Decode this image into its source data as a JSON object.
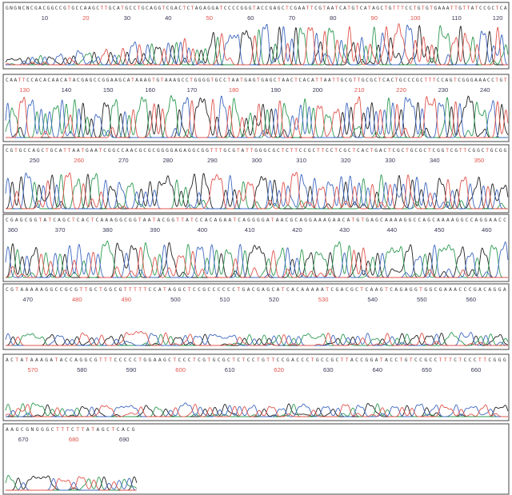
{
  "chart_data": {
    "type": "line",
    "title": "",
    "xlabel": "",
    "ylabel": "",
    "grid": false,
    "colors": {
      "A": "#2e9a52",
      "C": "#3f68c0",
      "G": "#222222",
      "T": "#e0544c",
      "frame": "#555555",
      "background": "#ffffff"
    },
    "rows": [
      {
        "start": 1,
        "end": 127,
        "sequence": "GNGNCNCGACGGCCGTGCCAAGCTTGCATGCCTGCAGGTCGACTCTAGAGGATCCCCGGGTACCGAGCTCGAATTCGTAATCATGTCATAGCTGTTTCCTGTGTGAAATTGTTATCCGCTCA",
        "tick_positions": [
          10,
          20,
          30,
          40,
          50,
          60,
          70,
          80,
          90,
          100,
          110,
          120
        ],
        "red_ticks": [
          20,
          50,
          90,
          100
        ],
        "signal_profile": "rising"
      },
      {
        "start": 126,
        "end": 243,
        "sequence": "CAATTCCACACAACATACGAGCCGGAAGCATAAAGTGTAAAGCCTGGGGTGCCTAATGAGTGAGCTAACTCACATTAATTGCGTTGCGCTCACTGCCCGCTTTCCAGTCGGGAAACCTGT",
        "tick_positions": [
          130,
          140,
          150,
          160,
          170,
          180,
          190,
          200,
          210,
          220,
          230,
          240
        ],
        "red_ticks": [
          130,
          180,
          210,
          220
        ],
        "signal_profile": "strong"
      },
      {
        "start": 244,
        "end": 360,
        "sequence": "CGTGCCAGCTGCATTAATGAATCGGCCAACGCGCGGGGAGAGGCGGTTTGCGTATTGGGCGCTCTTCCGCTTCCTCGCTCACTGACTCGCTGCGCTCGGTCGTTCGGCTGCGG",
        "tick_positions": [
          250,
          260,
          270,
          280,
          290,
          300,
          310,
          320,
          330,
          340,
          350
        ],
        "red_ticks": [
          260,
          350
        ],
        "signal_profile": "medium"
      },
      {
        "start": 359,
        "end": 466,
        "sequence": "CGAGCGGTATCAGCTCACTCAAAGGCGGTAATACGGTTATCCACAGAATCAGGGGATAACGCAGGAAAGAACATGTGAGCAAAAGGCCAGCAAAAGGCCAGGAACC",
        "tick_positions": [
          360,
          370,
          380,
          390,
          400,
          410,
          420,
          430,
          440,
          450,
          460
        ],
        "red_ticks": [],
        "signal_profile": "medium"
      },
      {
        "start": 466,
        "end": 565,
        "sequence": "CGTAAAAAGGCCGCGTTGCTGGCGTTTTTCCATAGGCTCCGCCCCCCTGACGAGCATCACAAAAATCGACGCTCAAGTCAGAGGTGGCGAAACCCGACAGGA",
        "tick_positions": [
          470,
          480,
          490,
          500,
          510,
          520,
          530,
          540,
          550,
          560
        ],
        "red_ticks": [
          480,
          490,
          530
        ],
        "signal_profile": "weak"
      },
      {
        "start": 565,
        "end": 667,
        "sequence": "ACTATAAAGATACCAGGCGTTTCCCCCTGGAAGCTCCCTCGTGCGCTCTCCTGTTCCGACCCTGCCGCTTACCGGATACCTGTCCGCCTTTCTCCCTTCGGG",
        "tick_positions": [
          570,
          580,
          590,
          600,
          610,
          620,
          630,
          640,
          650,
          660
        ],
        "red_ticks": [
          570,
          600,
          620
        ],
        "signal_profile": "weak"
      },
      {
        "start": 667,
        "end": 694,
        "sequence": "AAGCGNGGGCTTTCTTATAGCTCACG",
        "tick_positions": [
          670,
          680,
          690
        ],
        "red_ticks": [
          680
        ],
        "signal_profile": "weak"
      }
    ]
  }
}
